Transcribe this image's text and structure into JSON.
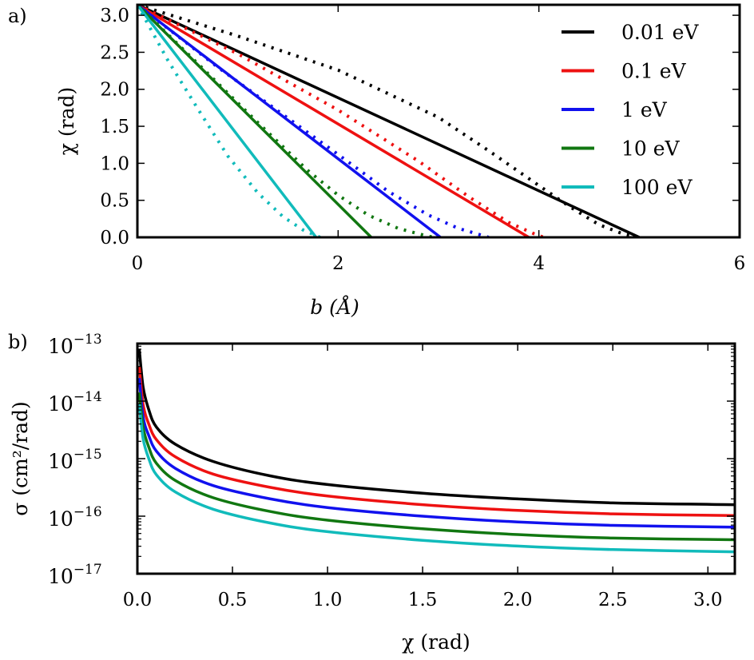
{
  "panel_labels": [
    "a)",
    "b)"
  ],
  "colors": {
    "black": "#000000",
    "red": "#ee1111",
    "blue": "#1111ee",
    "green": "#117711",
    "cyan": "#11bbbb"
  },
  "chart_data": [
    {
      "type": "line",
      "panel": "a)",
      "xlabel": "b (Å)",
      "ylabel": "χ (rad)",
      "xlim": [
        0,
        6
      ],
      "ylim": [
        0,
        3.14159
      ],
      "xticks": [
        "0",
        "2",
        "4",
        "6"
      ],
      "yticks": [
        "0.0",
        "0.5",
        "1.0",
        "1.5",
        "2.0",
        "2.5",
        "3.0"
      ],
      "ytick_values": [
        0,
        0.5,
        1.0,
        1.5,
        2.0,
        2.5,
        3.0
      ],
      "xtick_values": [
        0,
        2,
        4,
        6
      ],
      "legend": "top-right",
      "legend_entries": [
        "0.01 eV",
        "0.1 eV",
        "1 eV",
        "10 eV",
        "100 eV"
      ],
      "series": [
        {
          "name": "0.01 eV",
          "color": "black",
          "solid": [
            [
              0,
              3.1416
            ],
            [
              5.0,
              0
            ]
          ],
          "dotted": [
            [
              0,
              3.1416
            ],
            [
              1.0,
              2.72
            ],
            [
              2.0,
              2.26
            ],
            [
              3.0,
              1.62
            ],
            [
              3.5,
              1.17
            ],
            [
              4.0,
              0.7
            ],
            [
              4.3,
              0.42
            ],
            [
              4.6,
              0.17
            ],
            [
              4.85,
              0.04
            ],
            [
              5.0,
              0
            ]
          ]
        },
        {
          "name": "0.1 eV",
          "color": "red",
          "solid": [
            [
              0,
              3.1416
            ],
            [
              3.9,
              0
            ]
          ],
          "dotted": [
            [
              0,
              3.1416
            ],
            [
              1.0,
              2.48
            ],
            [
              2.0,
              1.72
            ],
            [
              2.8,
              1.03
            ],
            [
              3.3,
              0.55
            ],
            [
              3.7,
              0.2
            ],
            [
              3.95,
              0.05
            ],
            [
              4.05,
              0
            ]
          ]
        },
        {
          "name": "1 eV",
          "color": "blue",
          "solid": [
            [
              0,
              3.1416
            ],
            [
              3.02,
              0
            ]
          ],
          "dotted": [
            [
              0,
              3.1416
            ],
            [
              0.8,
              2.3
            ],
            [
              1.5,
              1.61
            ],
            [
              2.0,
              1.12
            ],
            [
              2.5,
              0.62
            ],
            [
              2.9,
              0.3
            ],
            [
              3.2,
              0.12
            ],
            [
              3.45,
              0.02
            ],
            [
              3.5,
              0
            ]
          ]
        },
        {
          "name": "10 eV",
          "color": "green",
          "solid": [
            [
              0,
              3.1416
            ],
            [
              2.33,
              0
            ]
          ],
          "dotted": [
            [
              0,
              3.1416
            ],
            [
              0.6,
              2.35
            ],
            [
              1.2,
              1.55
            ],
            [
              1.7,
              0.9
            ],
            [
              2.0,
              0.57
            ],
            [
              2.3,
              0.3
            ],
            [
              2.6,
              0.12
            ],
            [
              2.85,
              0.03
            ],
            [
              2.95,
              0
            ]
          ]
        },
        {
          "name": "100 eV",
          "color": "cyan",
          "solid": [
            [
              0,
              3.1416
            ],
            [
              1.78,
              0
            ]
          ],
          "dotted": [
            [
              0,
              3.1416
            ],
            [
              0.3,
              2.4
            ],
            [
              0.6,
              1.74
            ],
            [
              0.9,
              1.1
            ],
            [
              1.2,
              0.6
            ],
            [
              1.45,
              0.28
            ],
            [
              1.65,
              0.1
            ],
            [
              1.82,
              0
            ]
          ]
        }
      ]
    },
    {
      "type": "line",
      "panel": "b)",
      "xlabel": "χ (rad)",
      "ylabel": "σ (cm²/rad)",
      "xlim": [
        0,
        3.14159
      ],
      "ylim_log10": [
        -17,
        -13
      ],
      "xticks": [
        "0.0",
        "0.5",
        "1.0",
        "1.5",
        "2.0",
        "2.5",
        "3.0"
      ],
      "xtick_values": [
        0,
        0.5,
        1.0,
        1.5,
        2.0,
        2.5,
        3.0
      ],
      "ytick_exponents": [
        "−13",
        "−14",
        "−15",
        "−16",
        "−17"
      ],
      "ytick_log_values": [
        -13,
        -14,
        -15,
        -16,
        -17
      ],
      "ytick_base": "10",
      "series": [
        {
          "name": "0.01 eV",
          "color": "black",
          "points": [
            [
              0.01,
              -13.1
            ],
            [
              0.03,
              -13.75
            ],
            [
              0.06,
              -14.15
            ],
            [
              0.1,
              -14.45
            ],
            [
              0.2,
              -14.75
            ],
            [
              0.4,
              -15.05
            ],
            [
              0.7,
              -15.3
            ],
            [
              1.0,
              -15.45
            ],
            [
              1.5,
              -15.6
            ],
            [
              2.0,
              -15.7
            ],
            [
              2.5,
              -15.77
            ],
            [
              3.14,
              -15.8
            ]
          ]
        },
        {
          "name": "0.1 eV",
          "color": "red",
          "points": [
            [
              0.01,
              -13.4
            ],
            [
              0.03,
              -14.05
            ],
            [
              0.06,
              -14.4
            ],
            [
              0.1,
              -14.67
            ],
            [
              0.2,
              -14.97
            ],
            [
              0.4,
              -15.27
            ],
            [
              0.7,
              -15.5
            ],
            [
              1.0,
              -15.65
            ],
            [
              1.5,
              -15.8
            ],
            [
              2.0,
              -15.9
            ],
            [
              2.5,
              -15.96
            ],
            [
              3.14,
              -15.99
            ]
          ]
        },
        {
          "name": "1 eV",
          "color": "blue",
          "points": [
            [
              0.01,
              -13.6
            ],
            [
              0.03,
              -14.27
            ],
            [
              0.06,
              -14.6
            ],
            [
              0.1,
              -14.87
            ],
            [
              0.2,
              -15.17
            ],
            [
              0.4,
              -15.47
            ],
            [
              0.7,
              -15.7
            ],
            [
              1.0,
              -15.85
            ],
            [
              1.5,
              -16.0
            ],
            [
              2.0,
              -16.1
            ],
            [
              2.5,
              -16.16
            ],
            [
              3.14,
              -16.19
            ]
          ]
        },
        {
          "name": "10 eV",
          "color": "green",
          "points": [
            [
              0.01,
              -13.85
            ],
            [
              0.03,
              -14.45
            ],
            [
              0.06,
              -14.8
            ],
            [
              0.1,
              -15.08
            ],
            [
              0.2,
              -15.38
            ],
            [
              0.4,
              -15.68
            ],
            [
              0.7,
              -15.92
            ],
            [
              1.0,
              -16.07
            ],
            [
              1.5,
              -16.22
            ],
            [
              2.0,
              -16.32
            ],
            [
              2.5,
              -16.38
            ],
            [
              3.14,
              -16.41
            ]
          ]
        },
        {
          "name": "100 eV",
          "color": "cyan",
          "points": [
            [
              0.01,
              -14.05
            ],
            [
              0.03,
              -14.65
            ],
            [
              0.06,
              -15.0
            ],
            [
              0.1,
              -15.28
            ],
            [
              0.2,
              -15.58
            ],
            [
              0.4,
              -15.88
            ],
            [
              0.7,
              -16.12
            ],
            [
              1.0,
              -16.27
            ],
            [
              1.5,
              -16.42
            ],
            [
              2.0,
              -16.52
            ],
            [
              2.5,
              -16.58
            ],
            [
              3.14,
              -16.62
            ]
          ]
        }
      ]
    }
  ]
}
